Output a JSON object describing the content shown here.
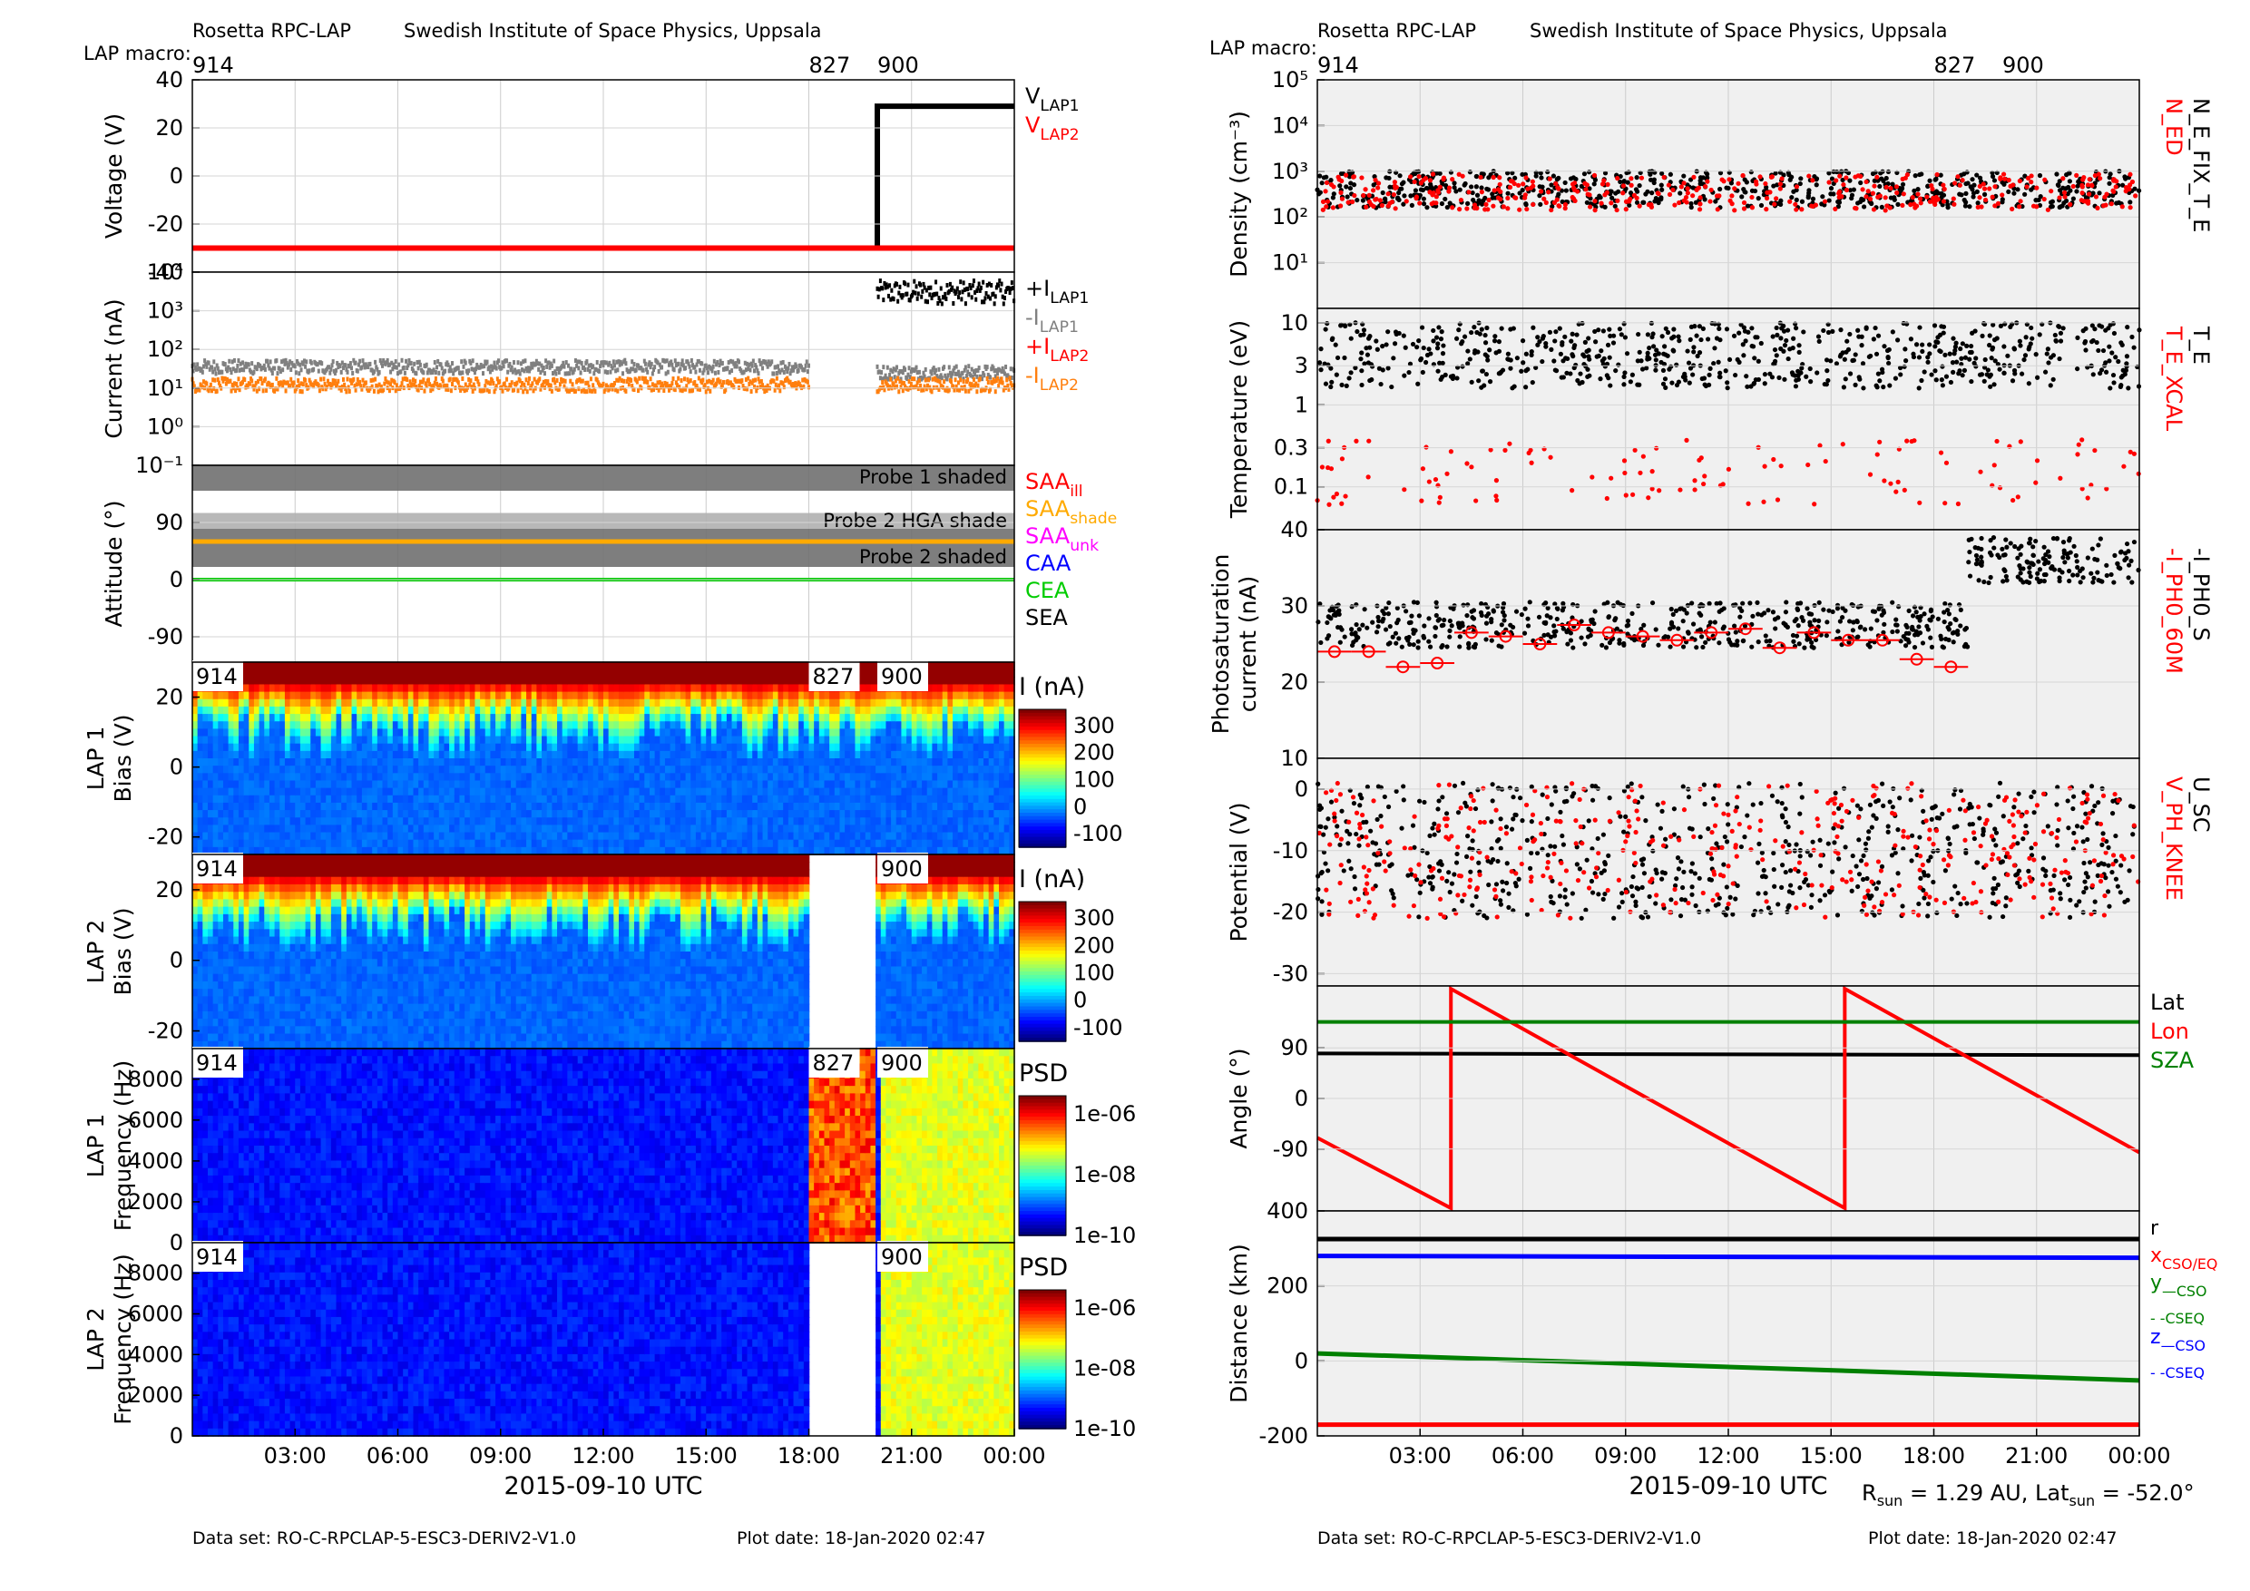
{
  "header": {
    "instrument": "Rosetta RPC-LAP",
    "institute": "Swedish Institute of Space Physics, Uppsala",
    "macro_label": "LAP macro:",
    "macros": [
      "914",
      "827",
      "900"
    ]
  },
  "footer": {
    "dataset": "Data set: RO-C-RPCLAP-5-ESC3-DERIV2-V1.0",
    "plot_date": "Plot date: 18-Jan-2020 02:47",
    "rsun": "R",
    "rsun_sub": "sun",
    "rsun_val": " = 1.29 AU, Lat",
    "lat_sub": "sun",
    "lat_val": " = -52.0°"
  },
  "xaxis": {
    "title": "2015-09-10 UTC",
    "ticks": [
      "03:00",
      "06:00",
      "09:00",
      "12:00",
      "15:00",
      "18:00",
      "21:00",
      "00:00"
    ]
  },
  "colors": {
    "black": "#000000",
    "red": "#ff0000",
    "gray": "#808080",
    "orange": "#ff7f0e",
    "green": "#008000",
    "lime": "#00cc00",
    "blue": "#0000ff",
    "saa_shade": "#ffaa00",
    "magenta": "#ff00ff",
    "panel_bg": "#f0f0f0"
  },
  "chart_data": [
    {
      "type": "line",
      "ylabel": "Voltage (V)",
      "ylim": [
        -40,
        40
      ],
      "yticks": [
        "40",
        "20",
        "0",
        "-20",
        "-40"
      ],
      "x_hours": [
        0,
        24
      ],
      "series": [
        {
          "name": "V_LAP1",
          "points": [
            [
              0,
              -30
            ],
            [
              18,
              -30
            ],
            [
              18,
              -30
            ],
            [
              20,
              -30
            ],
            [
              20,
              29
            ],
            [
              24,
              29
            ]
          ]
        },
        {
          "name": "V_LAP2",
          "points": [
            [
              0,
              -30
            ],
            [
              24,
              -30
            ]
          ]
        }
      ],
      "legend": [
        {
          "text": "V",
          "sub": "LAP1",
          "color": "black"
        },
        {
          "text": "V",
          "sub": "LAP2",
          "color": "red"
        }
      ]
    },
    {
      "type": "scatter",
      "ylabel": "Current (nA)",
      "yscale": "log",
      "ylim": [
        0.1,
        10000
      ],
      "yticks": [
        "10⁴",
        "10³",
        "10²",
        "10¹",
        "10⁰",
        "10⁻¹"
      ],
      "series": [
        {
          "name": "+I_LAP1",
          "segments": [
            {
              "from": 20,
              "to": 24,
              "level": 3000
            }
          ]
        },
        {
          "name": "-I_LAP1",
          "segments": [
            {
              "from": 0,
              "to": 18,
              "level": 35
            },
            {
              "from": 20,
              "to": 24,
              "level": 25
            }
          ]
        },
        {
          "name": "+I_LAP2",
          "segments": []
        },
        {
          "name": "-I_LAP2",
          "segments": [
            {
              "from": 0,
              "to": 18,
              "level": 12
            },
            {
              "from": 20,
              "to": 24,
              "level": 12
            }
          ]
        }
      ],
      "legend": [
        {
          "text": "+I",
          "sub": "LAP1",
          "color": "black"
        },
        {
          "text": "-I",
          "sub": "LAP1",
          "color": "gray"
        },
        {
          "text": "+I",
          "sub": "LAP2",
          "color": "red"
        },
        {
          "text": "-I",
          "sub": "LAP2",
          "color": "orange"
        }
      ]
    },
    {
      "type": "area",
      "ylabel": "Attitude (°)",
      "ylim": [
        -130,
        180
      ],
      "yticks": [
        "90",
        "0",
        "-90"
      ],
      "bands": [
        {
          "label": "Probe 1 shaded",
          "from": 140,
          "to": 180
        },
        {
          "label": "Probe 2 HGA shade",
          "from": 80,
          "to": 105
        },
        {
          "label": "Probe 2 shaded",
          "from": 20,
          "to": 80
        }
      ],
      "lines": [
        {
          "name": "SAA_shade",
          "value": 60
        },
        {
          "name": "CEA",
          "value": 0
        }
      ],
      "legend": [
        {
          "text": "SAA",
          "sub": "ill",
          "color": "red"
        },
        {
          "text": "SAA",
          "sub": "shade",
          "color": "saa_shade"
        },
        {
          "text": "SAA",
          "sub": "unk",
          "color": "magenta"
        },
        {
          "text": "CAA",
          "sub": "",
          "color": "blue"
        },
        {
          "text": "CEA",
          "sub": "",
          "color": "lime"
        },
        {
          "text": "SEA",
          "sub": "",
          "color": "black"
        }
      ]
    },
    {
      "type": "heatmap",
      "ylabel": [
        "LAP 1",
        "Bias (V)"
      ],
      "ylim": [
        -25,
        30
      ],
      "yticks": [
        "20",
        "0",
        "-20"
      ],
      "colorbar_title": "I (nA)",
      "colorbar_ticks": [
        "300",
        "200",
        "100",
        "0",
        "-100"
      ],
      "gaps": [
        [
          18,
          20
        ]
      ],
      "macros": [
        "914",
        "827",
        "900"
      ]
    },
    {
      "type": "heatmap",
      "ylabel": [
        "LAP 2",
        "Bias (V)"
      ],
      "ylim": [
        -25,
        30
      ],
      "yticks": [
        "20",
        "0",
        "-20"
      ],
      "colorbar_title": "I (nA)",
      "colorbar_ticks": [
        "300",
        "200",
        "100",
        "0",
        "-100"
      ],
      "gaps": [
        [
          18,
          20
        ]
      ],
      "macros": [
        "914",
        "900"
      ]
    },
    {
      "type": "heatmap",
      "ylabel": [
        "LAP 1",
        "Frequency (Hz)"
      ],
      "ylim": [
        0,
        9500
      ],
      "yticks": [
        "8000",
        "6000",
        "4000",
        "2000",
        "0"
      ],
      "colorbar_title": "PSD",
      "colorbar_ticks": [
        "1e-06",
        "1e-08",
        "1e-10"
      ],
      "macros": [
        "914",
        "827",
        "900"
      ]
    },
    {
      "type": "heatmap",
      "ylabel": [
        "LAP 2",
        "Frequency (Hz)"
      ],
      "ylim": [
        0,
        9500
      ],
      "yticks": [
        "8000",
        "6000",
        "4000",
        "2000",
        "0"
      ],
      "colorbar_title": "PSD",
      "colorbar_ticks": [
        "1e-06",
        "1e-08",
        "1e-10"
      ],
      "gaps": [
        [
          18,
          20
        ]
      ],
      "macros": [
        "914",
        "900"
      ]
    },
    {
      "type": "scatter",
      "ylabel": "Density (cm⁻³)",
      "yscale": "log",
      "ylim": [
        1,
        100000
      ],
      "yticks": [
        "10⁵",
        "10⁴",
        "10³",
        "10²",
        "10¹"
      ],
      "series": [
        {
          "name": "N_E_FIX_T_E",
          "level": 400
        },
        {
          "name": "N_ED",
          "level": 350
        }
      ],
      "legend": [
        {
          "text": "N_ED",
          "color": "red"
        },
        {
          "text": "N_E_FIX_T_E",
          "color": "black"
        }
      ]
    },
    {
      "type": "scatter",
      "ylabel": "Temperature (eV)",
      "yscale": "log",
      "ylim": [
        0.03,
        15
      ],
      "yticks": [
        "10",
        "3",
        "1",
        "0.3",
        "0.1"
      ],
      "series": [
        {
          "name": "T_E",
          "level": 4
        },
        {
          "name": "T_E_XCAL",
          "level": 0.15
        }
      ],
      "legend": [
        {
          "text": "T_E_XCAL",
          "color": "red"
        },
        {
          "text": "T_E",
          "color": "black"
        }
      ]
    },
    {
      "type": "scatter",
      "ylabel": [
        "Photosaturation",
        "current (nA)"
      ],
      "ylim": [
        10,
        40
      ],
      "yticks": [
        "40",
        "30",
        "20",
        "10"
      ],
      "series": [
        {
          "name": "-I_PH0_S",
          "level": 28
        },
        {
          "name": "-I_PH0_60M",
          "x": [
            0.5,
            1.5,
            2.5,
            3.5,
            4.5,
            5.5,
            6.5,
            7.5,
            8.5,
            9.5,
            10.5,
            11.5,
            12.5,
            13.5,
            14.5,
            15.5,
            16.5,
            17.5,
            18.5
          ],
          "values": [
            24,
            24,
            22,
            22.5,
            26.5,
            26,
            25,
            27.5,
            26.5,
            26,
            25.5,
            26.5,
            27,
            24.5,
            26.5,
            25.5,
            25.5,
            23,
            22
          ]
        }
      ],
      "legend": [
        {
          "text": "-I_PH0_60M",
          "color": "red"
        },
        {
          "text": "-I_PH0_S",
          "color": "black"
        }
      ]
    },
    {
      "type": "scatter",
      "ylabel": "Potential (V)",
      "ylim": [
        -32,
        5
      ],
      "yticks": [
        "0",
        "-10",
        "-20",
        "-30"
      ],
      "series": [
        {
          "name": "U_SC",
          "level": -10
        },
        {
          "name": "V_PH_KNEE",
          "level": -10
        }
      ],
      "legend": [
        {
          "text": "V_PH_KNEE",
          "color": "red"
        },
        {
          "text": "U_SC",
          "color": "black"
        }
      ]
    },
    {
      "type": "line",
      "ylabel": "Angle (°)",
      "ylim": [
        -200,
        200
      ],
      "yticks": [
        "90",
        "0",
        "-90"
      ],
      "series": [
        {
          "name": "Lat",
          "points": [
            [
              0,
              80
            ],
            [
              24,
              77
            ]
          ]
        },
        {
          "name": "Lon",
          "points": [
            [
              0,
              -70
            ],
            [
              3.9,
              -195
            ],
            [
              3.9,
              195
            ],
            [
              15.4,
              -195
            ],
            [
              15.4,
              195
            ],
            [
              24,
              -96
            ]
          ]
        },
        {
          "name": "SZA",
          "points": [
            [
              0,
              136
            ],
            [
              24,
              136
            ]
          ]
        }
      ],
      "legend": [
        {
          "text": "Lat",
          "color": "black"
        },
        {
          "text": "Lon",
          "color": "red"
        },
        {
          "text": "SZA",
          "color": "green"
        }
      ]
    },
    {
      "type": "line",
      "ylabel": "Distance (km)",
      "ylim": [
        -200,
        400
      ],
      "yticks": [
        "400",
        "200",
        "0",
        "-200"
      ],
      "series": [
        {
          "name": "r",
          "points": [
            [
              0,
              325
            ],
            [
              24,
              325
            ]
          ]
        },
        {
          "name": "x",
          "points": [
            [
              0,
              -170
            ],
            [
              24,
              -170
            ]
          ]
        },
        {
          "name": "y",
          "points": [
            [
              0,
              20
            ],
            [
              24,
              -52
            ]
          ]
        },
        {
          "name": "z",
          "points": [
            [
              0,
              280
            ],
            [
              24,
              275
            ]
          ]
        }
      ],
      "legend": [
        {
          "text": "r",
          "sub": "",
          "color": "black"
        },
        {
          "text": "x",
          "sub": "CSO/EQ",
          "color": "red"
        },
        {
          "text": "y",
          "sub": "—CSO",
          "color": "green"
        },
        {
          "text": "",
          "sub": "- -CSEQ",
          "color": "green"
        },
        {
          "text": "z",
          "sub": "—CSO",
          "color": "blue"
        },
        {
          "text": "",
          "sub": "- -CSEQ",
          "color": "blue"
        }
      ]
    }
  ]
}
